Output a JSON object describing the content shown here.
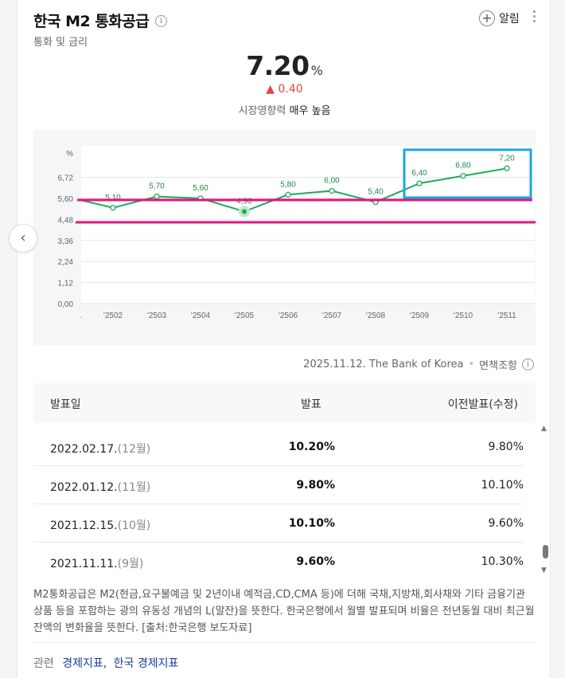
{
  "header": {
    "title": "한국 M2 통화공급",
    "subtitle": "통화 및 금리",
    "alarm_label": "알림"
  },
  "summary": {
    "value": "7.20",
    "unit": "%",
    "change": "▲ 0.40",
    "impact_label": "시장영향력",
    "impact_value": "매우 높음"
  },
  "chart_data": {
    "type": "line",
    "ylabel": "%",
    "yticks": [
      "0,00",
      "1,12",
      "2,24",
      "3,36",
      "4,48",
      "5,60",
      "6,72"
    ],
    "ylim": [
      0,
      8.4
    ],
    "categories": [
      ".",
      "'2502",
      "'2503",
      "'2504",
      "'2505",
      "'2506",
      "'2507",
      "'2508",
      "'2509",
      "'2510",
      "'2511"
    ],
    "values": [
      5.5,
      5.1,
      5.7,
      5.6,
      4.9,
      5.8,
      6.0,
      5.4,
      6.4,
      6.8,
      7.2
    ],
    "labels": [
      "",
      "5,10",
      "5,70",
      "5,60",
      "4,90",
      "5,80",
      "6,00",
      "5,40",
      "6,40",
      "6,80",
      "7,20"
    ],
    "highlight_index": 4,
    "line_color": "#1eaa5a",
    "annotation_line_color": "#e8127a",
    "annotation_box_color": "#1aa7df",
    "grid": true
  },
  "source": {
    "text": "2025.11.12. The Bank of Korea",
    "disclaimer": "면책조항"
  },
  "table": {
    "headers": [
      "발표일",
      "발표",
      "이전발표(수정)"
    ],
    "rows": [
      {
        "date": "2022.02.17.",
        "month": "(12월)",
        "value": "10.20%",
        "prev": "9.80%"
      },
      {
        "date": "2022.01.12.",
        "month": "(11월)",
        "value": "9.80%",
        "prev": "10.10%"
      },
      {
        "date": "2021.12.15.",
        "month": "(10월)",
        "value": "10.10%",
        "prev": "9.60%"
      },
      {
        "date": "2021.11.11.",
        "month": "(9월)",
        "value": "9.60%",
        "prev": "10.30%"
      }
    ]
  },
  "description": "M2통화공급은 M2(현금,요구불예금 및 2년이내 예적금,CD,CMA 등)에 더해 국채,지방채,회사채와 기타 금융기관 상품 등을 포함하는 광의 유동성 개념의 L(말잔)을 뜻한다. 한국은행에서 월별 발표되며 비율은 전년동월 대비 최근월 잔액의 변화율을 뜻한다. [출처:한국은행 보도자료]",
  "related": {
    "label": "관련",
    "link1": "경제지표,",
    "link2": "한국 경제지표"
  }
}
